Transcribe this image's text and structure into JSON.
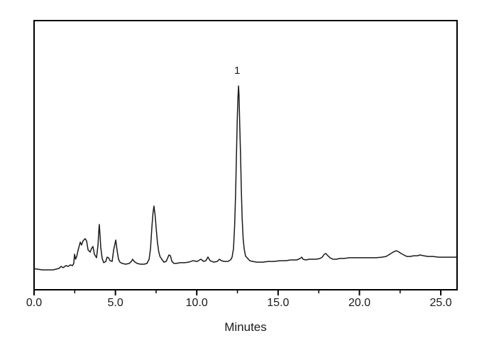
{
  "figure": {
    "kind": "HPLC chromatogram",
    "background_color": "#ffffff",
    "frame_color": "#000000",
    "text_color": "#1a1a1a"
  },
  "chart_data": {
    "type": "line",
    "title": "",
    "xlabel": "Minutes",
    "ylabel": "",
    "xlim": [
      0.0,
      26.0
    ],
    "x_major_ticks": [
      0.0,
      5.0,
      10.0,
      15.0,
      20.0,
      25.0
    ],
    "x_major_tick_labels": [
      "0.0",
      "5.0",
      "10.0",
      "15.0",
      "20.0",
      "25.0"
    ],
    "x_minor_ticks": [
      2.5,
      7.5,
      12.5,
      17.5,
      22.5
    ],
    "y_axis_shown": false,
    "grid": false,
    "legend": "none",
    "line_color": "#1a1a1a",
    "annotations": [
      {
        "label": "1",
        "x": 12.57,
        "y": 1.0
      }
    ],
    "named_peaks": [
      {
        "label": "1",
        "retention_time_min": 12.6,
        "relative_intensity": 1.0
      }
    ],
    "y_units": "relative intensity (a.u., main peak = 1.0)",
    "series": [
      {
        "name": "chromatogram-trace",
        "x": [
          0.0,
          0.52,
          1.18,
          1.53,
          1.66,
          1.79,
          1.96,
          2.09,
          2.23,
          2.36,
          2.44,
          2.49,
          2.55,
          2.62,
          2.71,
          2.84,
          2.92,
          3.01,
          3.14,
          3.23,
          3.32,
          3.45,
          3.53,
          3.62,
          3.71,
          3.84,
          3.93,
          3.97,
          4.01,
          4.06,
          4.1,
          4.19,
          4.28,
          4.41,
          4.49,
          4.58,
          4.67,
          4.8,
          4.89,
          5.02,
          5.1,
          5.19,
          5.28,
          5.41,
          5.63,
          5.85,
          5.98,
          6.06,
          6.15,
          6.33,
          6.54,
          6.76,
          6.94,
          7.07,
          7.16,
          7.24,
          7.31,
          7.37,
          7.44,
          7.51,
          7.58,
          7.66,
          7.74,
          7.85,
          7.98,
          8.12,
          8.2,
          8.29,
          8.38,
          8.47,
          8.6,
          8.73,
          8.99,
          9.25,
          9.51,
          9.77,
          10.03,
          10.25,
          10.43,
          10.56,
          10.69,
          10.82,
          11.04,
          11.26,
          11.39,
          11.52,
          11.69,
          11.91,
          12.08,
          12.17,
          12.26,
          12.33,
          12.39,
          12.44,
          12.49,
          12.53,
          12.57,
          12.6,
          12.64,
          12.69,
          12.74,
          12.79,
          12.85,
          12.92,
          13.0,
          13.09,
          13.26,
          13.44,
          13.7,
          14.05,
          14.4,
          14.75,
          15.1,
          15.45,
          15.79,
          16.14,
          16.36,
          16.45,
          16.54,
          16.71,
          16.93,
          17.15,
          17.36,
          17.58,
          17.71,
          17.84,
          17.93,
          18.06,
          18.19,
          18.37,
          18.59,
          18.8,
          19.07,
          19.37,
          19.72,
          20.16,
          20.59,
          21.03,
          21.38,
          21.64,
          21.86,
          22.08,
          22.25,
          22.38,
          22.56,
          22.73,
          22.91,
          23.12,
          23.34,
          23.56,
          23.73,
          23.95,
          24.21,
          24.52,
          24.87,
          25.22,
          25.57,
          25.96
        ],
        "y": [
          0.006,
          0.0,
          0.0,
          0.008,
          0.019,
          0.012,
          0.023,
          0.019,
          0.027,
          0.023,
          0.035,
          0.085,
          0.058,
          0.073,
          0.108,
          0.151,
          0.135,
          0.158,
          0.17,
          0.158,
          0.108,
          0.097,
          0.116,
          0.127,
          0.085,
          0.066,
          0.135,
          0.2,
          0.247,
          0.18,
          0.12,
          0.062,
          0.039,
          0.046,
          0.069,
          0.066,
          0.05,
          0.046,
          0.108,
          0.162,
          0.108,
          0.058,
          0.042,
          0.035,
          0.031,
          0.035,
          0.046,
          0.058,
          0.046,
          0.035,
          0.031,
          0.031,
          0.035,
          0.058,
          0.116,
          0.232,
          0.31,
          0.347,
          0.3,
          0.22,
          0.15,
          0.1,
          0.073,
          0.058,
          0.042,
          0.046,
          0.062,
          0.081,
          0.077,
          0.046,
          0.035,
          0.035,
          0.039,
          0.039,
          0.042,
          0.05,
          0.046,
          0.058,
          0.046,
          0.05,
          0.07,
          0.05,
          0.042,
          0.046,
          0.058,
          0.05,
          0.046,
          0.046,
          0.054,
          0.069,
          0.116,
          0.24,
          0.42,
          0.63,
          0.82,
          0.93,
          1.0,
          0.95,
          0.8,
          0.63,
          0.44,
          0.28,
          0.17,
          0.11,
          0.075,
          0.066,
          0.05,
          0.046,
          0.042,
          0.042,
          0.046,
          0.046,
          0.05,
          0.05,
          0.054,
          0.054,
          0.062,
          0.069,
          0.058,
          0.054,
          0.058,
          0.058,
          0.058,
          0.062,
          0.069,
          0.085,
          0.089,
          0.077,
          0.066,
          0.058,
          0.058,
          0.062,
          0.062,
          0.066,
          0.066,
          0.066,
          0.066,
          0.066,
          0.069,
          0.073,
          0.085,
          0.097,
          0.104,
          0.1,
          0.089,
          0.081,
          0.073,
          0.073,
          0.077,
          0.077,
          0.081,
          0.077,
          0.073,
          0.073,
          0.069,
          0.069,
          0.069,
          0.069
        ]
      }
    ]
  }
}
